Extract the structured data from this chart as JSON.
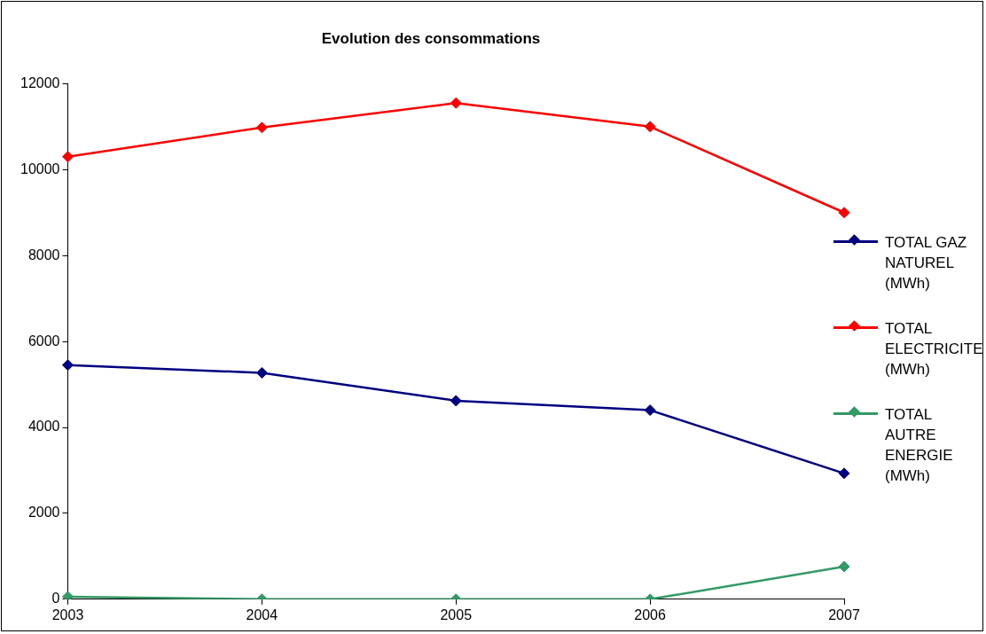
{
  "chart_data": {
    "type": "line",
    "title": "Evolution des consommations",
    "categories": [
      "2003",
      "2004",
      "2005",
      "2006",
      "2007"
    ],
    "series": [
      {
        "name": "TOTAL GAZ NATUREL (MWh)",
        "color": "#000080",
        "values": [
          5450,
          5270,
          4620,
          4400,
          2930
        ]
      },
      {
        "name": "TOTAL ELECTRICITE (MWh)",
        "color": "#ff0000",
        "values": [
          10300,
          10980,
          11550,
          11000,
          9000
        ]
      },
      {
        "name": "TOTAL AUTRE ENERGIE (MWh)",
        "color": "#339966",
        "values": [
          60,
          0,
          0,
          0,
          760
        ]
      }
    ],
    "ylim": [
      0,
      12000
    ],
    "yticks": [
      0,
      2000,
      4000,
      6000,
      8000,
      10000,
      12000
    ],
    "grid": false,
    "legend": "right",
    "marker": "diamond",
    "line_style": "solid"
  }
}
